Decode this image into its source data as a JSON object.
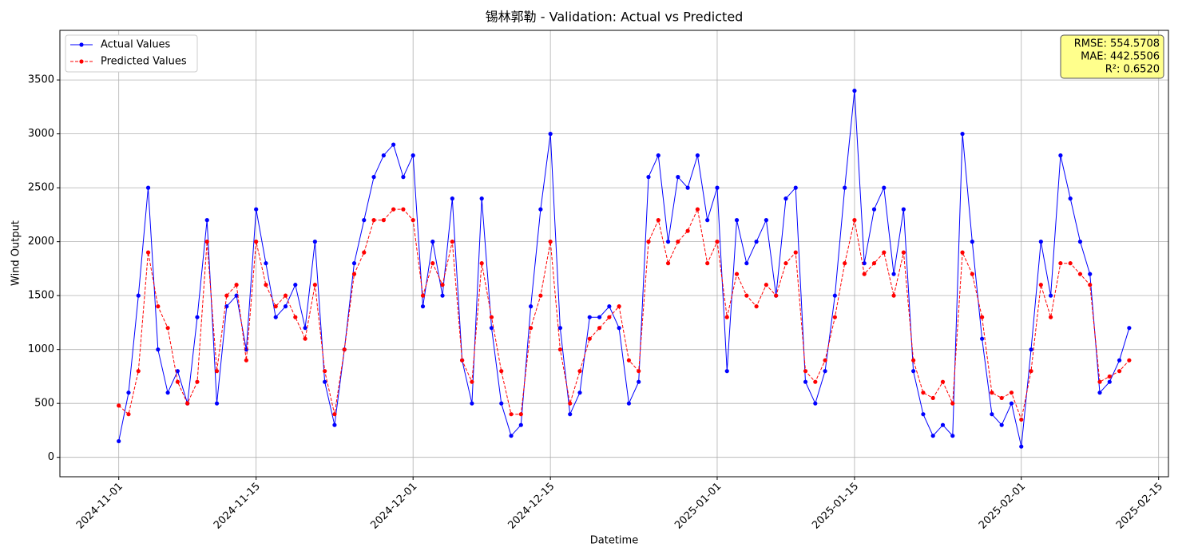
{
  "chart_data": {
    "type": "line",
    "title": "锡林郭勒 - Validation: Actual vs Predicted",
    "xlabel": "Datetime",
    "ylabel": "Wind Output",
    "x": [
      "2024-11-01",
      "2024-11-02",
      "2024-11-03",
      "2024-11-04",
      "2024-11-05",
      "2024-11-06",
      "2024-11-07",
      "2024-11-08",
      "2024-11-09",
      "2024-11-10",
      "2024-11-11",
      "2024-11-12",
      "2024-11-13",
      "2024-11-14",
      "2024-11-15",
      "2024-11-16",
      "2024-11-17",
      "2024-11-18",
      "2024-11-19",
      "2024-11-20",
      "2024-11-21",
      "2024-11-22",
      "2024-11-23",
      "2024-11-24",
      "2024-11-25",
      "2024-11-26",
      "2024-11-27",
      "2024-11-28",
      "2024-11-29",
      "2024-11-30",
      "2024-12-01",
      "2024-12-02",
      "2024-12-03",
      "2024-12-04",
      "2024-12-05",
      "2024-12-06",
      "2024-12-07",
      "2024-12-08",
      "2024-12-09",
      "2024-12-10",
      "2024-12-11",
      "2024-12-12",
      "2024-12-13",
      "2024-12-14",
      "2024-12-15",
      "2024-12-16",
      "2024-12-17",
      "2024-12-18",
      "2024-12-19",
      "2024-12-20",
      "2024-12-21",
      "2024-12-22",
      "2024-12-23",
      "2024-12-24",
      "2024-12-25",
      "2024-12-26",
      "2024-12-27",
      "2024-12-28",
      "2024-12-29",
      "2024-12-30",
      "2024-12-31",
      "2025-01-01",
      "2025-01-02",
      "2025-01-03",
      "2025-01-04",
      "2025-01-05",
      "2025-01-06",
      "2025-01-07",
      "2025-01-08",
      "2025-01-09",
      "2025-01-10",
      "2025-01-11",
      "2025-01-12",
      "2025-01-13",
      "2025-01-14",
      "2025-01-15",
      "2025-01-16",
      "2025-01-17",
      "2025-01-18",
      "2025-01-19",
      "2025-01-20",
      "2025-01-21",
      "2025-01-22",
      "2025-01-23",
      "2025-01-24",
      "2025-01-25",
      "2025-01-26",
      "2025-01-27",
      "2025-01-28",
      "2025-01-29",
      "2025-01-30",
      "2025-01-31",
      "2025-02-01",
      "2025-02-02",
      "2025-02-03",
      "2025-02-04",
      "2025-02-05",
      "2025-02-06",
      "2025-02-07",
      "2025-02-08",
      "2025-02-09",
      "2025-02-10",
      "2025-02-11",
      "2025-02-12"
    ],
    "series": [
      {
        "name": "Actual Values",
        "color": "#0000ff",
        "dash": false,
        "values": [
          150,
          600,
          1500,
          2500,
          1000,
          600,
          800,
          500,
          1300,
          2200,
          500,
          1400,
          1500,
          1000,
          2300,
          1800,
          1300,
          1400,
          1600,
          1200,
          2000,
          700,
          300,
          1000,
          1800,
          2200,
          2600,
          2800,
          2900,
          2600,
          2800,
          1400,
          2000,
          1500,
          2400,
          900,
          500,
          2400,
          1200,
          500,
          200,
          300,
          1400,
          2300,
          3000,
          1200,
          400,
          600,
          1300,
          1300,
          1400,
          1200,
          500,
          700,
          2600,
          2800,
          2000,
          2600,
          2500,
          2800,
          2200,
          2500,
          800,
          2200,
          1800,
          2000,
          2200,
          1500,
          2400,
          2500,
          700,
          500,
          800,
          1500,
          2500,
          3400,
          1800,
          2300,
          2500,
          1700,
          2300,
          800,
          400,
          200,
          300,
          200,
          3000,
          2000,
          1100,
          400,
          300,
          500,
          100,
          1000,
          2000,
          1500,
          2800,
          2400,
          2000,
          1700,
          600,
          700,
          900,
          1200
        ]
      },
      {
        "name": "Predicted Values",
        "color": "#ff0000",
        "dash": true,
        "values": [
          480,
          400,
          800,
          1900,
          1400,
          1200,
          700,
          500,
          700,
          2000,
          800,
          1500,
          1600,
          900,
          2000,
          1600,
          1400,
          1500,
          1300,
          1100,
          1600,
          800,
          400,
          1000,
          1700,
          1900,
          2200,
          2200,
          2300,
          2300,
          2200,
          1500,
          1800,
          1600,
          2000,
          900,
          700,
          1800,
          1300,
          800,
          400,
          400,
          1200,
          1500,
          2000,
          1000,
          500,
          800,
          1100,
          1200,
          1300,
          1400,
          900,
          800,
          2000,
          2200,
          1800,
          2000,
          2100,
          2300,
          1800,
          2000,
          1300,
          1700,
          1500,
          1400,
          1600,
          1500,
          1800,
          1900,
          800,
          700,
          900,
          1300,
          1800,
          2200,
          1700,
          1800,
          1900,
          1500,
          1900,
          900,
          600,
          550,
          700,
          500,
          1900,
          1700,
          1300,
          600,
          550,
          600,
          350,
          800,
          1600,
          1300,
          1800,
          1800,
          1700,
          1600,
          700,
          750,
          800,
          900
        ]
      }
    ],
    "xlim": [
      "2024-10-26",
      "2025-02-16"
    ],
    "xticks": [
      "2024-11-01",
      "2024-11-15",
      "2024-12-01",
      "2024-12-15",
      "2025-01-01",
      "2025-01-15",
      "2025-02-01",
      "2025-02-15"
    ],
    "ylim": [
      -180,
      3960
    ],
    "yticks": [
      0,
      500,
      1000,
      1500,
      2000,
      2500,
      3000,
      3500
    ],
    "grid": true,
    "legend": "upper left",
    "annotation": [
      "RMSE: 554.5708",
      "MAE: 442.5506",
      "R²: 0.6520"
    ]
  }
}
